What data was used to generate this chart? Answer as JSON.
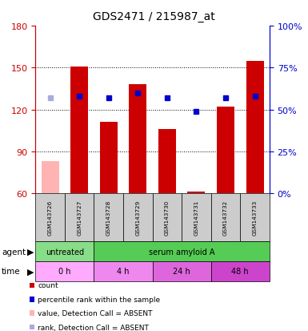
{
  "title": "GDS2471 / 215987_at",
  "samples": [
    "GSM143726",
    "GSM143727",
    "GSM143728",
    "GSM143729",
    "GSM143730",
    "GSM143731",
    "GSM143732",
    "GSM143733"
  ],
  "bar_values": [
    83,
    151,
    111,
    138,
    106,
    61,
    122,
    155
  ],
  "bar_absent": [
    true,
    false,
    false,
    false,
    false,
    false,
    false,
    false
  ],
  "rank_values": [
    57,
    58,
    57,
    60,
    57,
    49,
    57,
    58
  ],
  "rank_absent": [
    true,
    false,
    false,
    false,
    false,
    false,
    false,
    false
  ],
  "ylim_left": [
    60,
    180
  ],
  "ylim_right": [
    0,
    100
  ],
  "yticks_left": [
    60,
    90,
    120,
    150,
    180
  ],
  "yticks_right": [
    0,
    25,
    50,
    75,
    100
  ],
  "bar_color": "#cc0000",
  "bar_absent_color": "#ffb3b3",
  "rank_color": "#0000cc",
  "rank_absent_color": "#aaaadd",
  "agent_groups": [
    {
      "label": "untreated",
      "start": 0,
      "end": 2,
      "color": "#88dd88"
    },
    {
      "label": "serum amyloid A",
      "start": 2,
      "end": 8,
      "color": "#55cc55"
    }
  ],
  "time_groups": [
    {
      "label": "0 h",
      "start": 0,
      "end": 2,
      "color": "#ffaaff"
    },
    {
      "label": "4 h",
      "start": 2,
      "end": 4,
      "color": "#ee88ee"
    },
    {
      "label": "24 h",
      "start": 4,
      "end": 6,
      "color": "#dd66dd"
    },
    {
      "label": "48 h",
      "start": 6,
      "end": 8,
      "color": "#cc44cc"
    }
  ],
  "legend_items": [
    {
      "color": "#cc0000",
      "label": "count"
    },
    {
      "color": "#0000cc",
      "label": "percentile rank within the sample"
    },
    {
      "color": "#ffb3b3",
      "label": "value, Detection Call = ABSENT"
    },
    {
      "color": "#aaaadd",
      "label": "rank, Detection Call = ABSENT"
    }
  ],
  "bar_width": 0.6,
  "left_axis_color": "#cc0000",
  "right_axis_color": "#0000cc",
  "sample_box_color": "#cccccc",
  "dotted_grid_values": [
    90,
    120,
    150
  ]
}
